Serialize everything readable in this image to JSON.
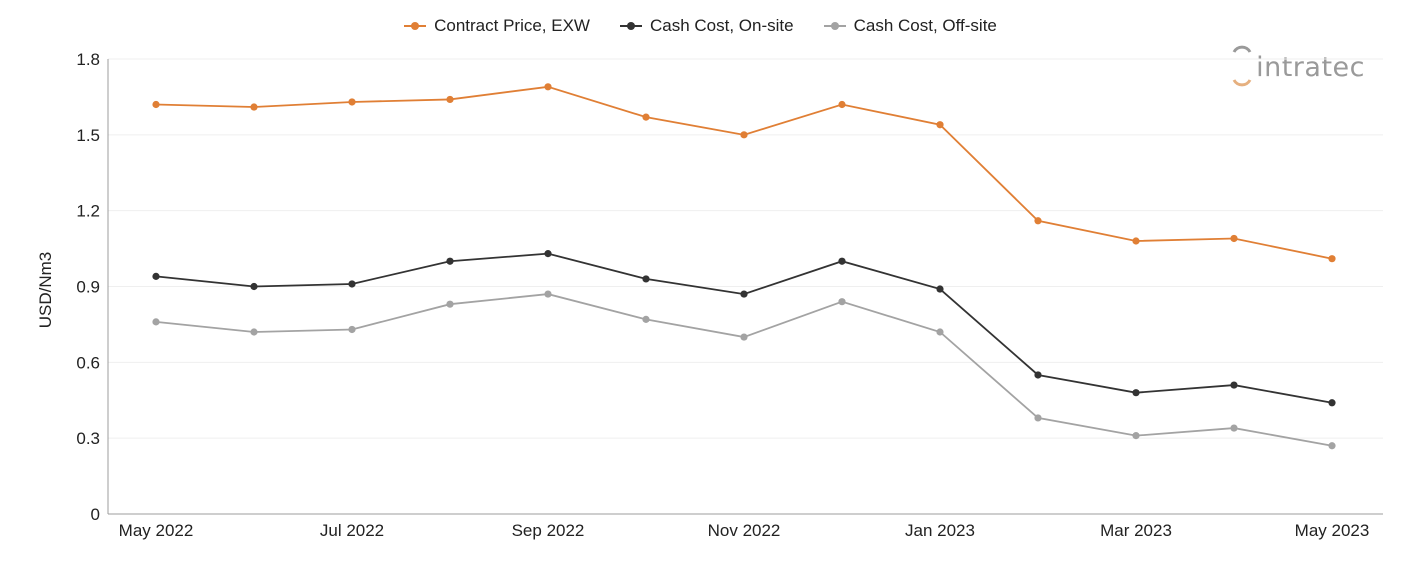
{
  "logo": {
    "text": "intratec",
    "color": "#9a9a9a",
    "accent": "#e6b07f"
  },
  "chart_data": {
    "type": "line",
    "title": "",
    "xlabel": "",
    "ylabel": "USD/Nm3",
    "x": [
      "May 2022",
      "Jun 2022",
      "Jul 2022",
      "Aug 2022",
      "Sep 2022",
      "Oct 2022",
      "Nov 2022",
      "Dec 2022",
      "Jan 2023",
      "Feb 2023",
      "Mar 2023",
      "Apr 2023",
      "May 2023"
    ],
    "x_tick_labels": [
      "May 2022",
      "Jul 2022",
      "Sep 2022",
      "Nov 2022",
      "Jan 2023",
      "Mar 2023",
      "May 2023"
    ],
    "ylim": [
      0,
      1.8
    ],
    "y_ticks": [
      "0",
      "0.3",
      "0.6",
      "0.9",
      "1.2",
      "1.5",
      "1.8"
    ],
    "grid": true,
    "legend_position": "top-center",
    "series": [
      {
        "name": "Contract Price, EXW",
        "color": "#e07f35",
        "values": [
          1.62,
          1.61,
          1.63,
          1.64,
          1.69,
          1.57,
          1.5,
          1.62,
          1.54,
          1.16,
          1.08,
          1.09,
          1.01
        ]
      },
      {
        "name": "Cash Cost, On-site",
        "color": "#333333",
        "values": [
          0.94,
          0.9,
          0.91,
          1.0,
          1.03,
          0.93,
          0.87,
          1.0,
          0.89,
          0.55,
          0.48,
          0.51,
          0.44
        ]
      },
      {
        "name": "Cash Cost, Off-site",
        "color": "#a3a3a3",
        "values": [
          0.76,
          0.72,
          0.73,
          0.83,
          0.87,
          0.77,
          0.7,
          0.84,
          0.72,
          0.38,
          0.31,
          0.34,
          0.27
        ]
      }
    ]
  }
}
